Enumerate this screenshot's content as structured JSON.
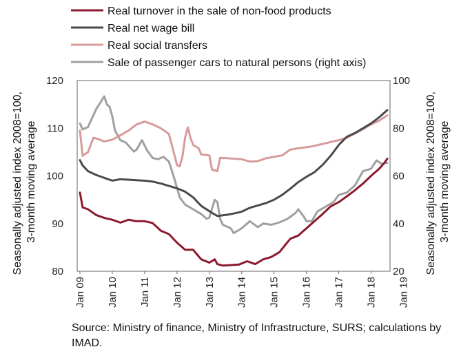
{
  "chart_data": {
    "type": "line",
    "x_start": "2009-01",
    "x_step": "month",
    "xtick_labels": [
      "Jan 09",
      "Jan 10",
      "Jan 11",
      "Jan 12",
      "Jan 13",
      "Jan 14",
      "Jan 15",
      "Jan 16",
      "Jan 17",
      "Jan 18",
      "Jan 19"
    ],
    "ylabel_left": "Seasonally adjusted index 2008=100, 3-month moving average",
    "ylabel_right": "Seasonally adjusted index 2008=100, 3-month moving average",
    "ylim_left": [
      80,
      120
    ],
    "ylim_right": [
      20,
      100
    ],
    "yticks_left": [
      "80",
      "90",
      "100",
      "110",
      "120"
    ],
    "yticks_right": [
      "20",
      "40",
      "60",
      "80",
      "100"
    ],
    "grid": false,
    "legend_position": "top",
    "series": [
      {
        "name": "Real turnover in the sale of non-food products",
        "axis": "left",
        "color": "#8b1a2e",
        "knots": [
          [
            0,
            96.5
          ],
          [
            1,
            93.4
          ],
          [
            3,
            93.0
          ],
          [
            6,
            91.8
          ],
          [
            9,
            91.2
          ],
          [
            12,
            90.8
          ],
          [
            15,
            90.2
          ],
          [
            18,
            90.8
          ],
          [
            21,
            90.5
          ],
          [
            24,
            90.5
          ],
          [
            27,
            90.1
          ],
          [
            30,
            88.5
          ],
          [
            33,
            87.8
          ],
          [
            36,
            86.0
          ],
          [
            39,
            84.5
          ],
          [
            42,
            84.5
          ],
          [
            45,
            82.5
          ],
          [
            48,
            81.8
          ],
          [
            50,
            82.5
          ],
          [
            51,
            81.5
          ],
          [
            53,
            81.2
          ],
          [
            56,
            81.3
          ],
          [
            59,
            81.4
          ],
          [
            62,
            82.1
          ],
          [
            65,
            81.5
          ],
          [
            68,
            82.5
          ],
          [
            71,
            83.0
          ],
          [
            74,
            84.0
          ],
          [
            78,
            86.8
          ],
          [
            81,
            87.5
          ],
          [
            84,
            89.0
          ],
          [
            87,
            90.5
          ],
          [
            90,
            92.0
          ],
          [
            93,
            93.6
          ],
          [
            96,
            94.5
          ],
          [
            99,
            95.7
          ],
          [
            102,
            97.0
          ],
          [
            105,
            98.4
          ],
          [
            108,
            100.0
          ],
          [
            111,
            101.5
          ],
          [
            113,
            102.8
          ],
          [
            114,
            103.6
          ]
        ]
      },
      {
        "name": "Real net wage bill",
        "axis": "left",
        "color": "#4a4a4a",
        "knots": [
          [
            0,
            103.3
          ],
          [
            1,
            102.2
          ],
          [
            3,
            101.0
          ],
          [
            6,
            100.2
          ],
          [
            9,
            99.6
          ],
          [
            12,
            99.0
          ],
          [
            15,
            99.3
          ],
          [
            18,
            99.2
          ],
          [
            24,
            99.0
          ],
          [
            27,
            98.8
          ],
          [
            30,
            98.4
          ],
          [
            33,
            97.9
          ],
          [
            36,
            97.4
          ],
          [
            39,
            96.7
          ],
          [
            42,
            95.5
          ],
          [
            45,
            93.7
          ],
          [
            48,
            92.6
          ],
          [
            51,
            91.6
          ],
          [
            54,
            91.8
          ],
          [
            57,
            92.1
          ],
          [
            60,
            92.5
          ],
          [
            63,
            93.3
          ],
          [
            66,
            93.8
          ],
          [
            69,
            94.3
          ],
          [
            72,
            95.0
          ],
          [
            75,
            96.0
          ],
          [
            78,
            97.3
          ],
          [
            81,
            98.7
          ],
          [
            84,
            99.8
          ],
          [
            87,
            100.8
          ],
          [
            90,
            102.3
          ],
          [
            93,
            104.2
          ],
          [
            96,
            106.5
          ],
          [
            99,
            108.2
          ],
          [
            102,
            109.0
          ],
          [
            105,
            110.0
          ],
          [
            108,
            111.0
          ],
          [
            111,
            112.3
          ],
          [
            114,
            113.8
          ]
        ]
      },
      {
        "name": "Real social transfers",
        "axis": "left",
        "color": "#d89a9a",
        "knots": [
          [
            0,
            109.5
          ],
          [
            1,
            104.2
          ],
          [
            3,
            105.0
          ],
          [
            5,
            108.0
          ],
          [
            7,
            107.7
          ],
          [
            9,
            107.2
          ],
          [
            12,
            107.6
          ],
          [
            15,
            108.5
          ],
          [
            18,
            109.5
          ],
          [
            21,
            110.8
          ],
          [
            24,
            111.4
          ],
          [
            27,
            110.8
          ],
          [
            30,
            110.0
          ],
          [
            33,
            108.8
          ],
          [
            35,
            104.5
          ],
          [
            36,
            102.3
          ],
          [
            37,
            102.0
          ],
          [
            38,
            104.0
          ],
          [
            39,
            108.0
          ],
          [
            40,
            110.2
          ],
          [
            41,
            108.0
          ],
          [
            42,
            106.5
          ],
          [
            44,
            105.8
          ],
          [
            45,
            104.5
          ],
          [
            48,
            104.3
          ],
          [
            49,
            101.3
          ],
          [
            51,
            101.0
          ],
          [
            52,
            103.8
          ],
          [
            55,
            103.7
          ],
          [
            60,
            103.5
          ],
          [
            63,
            103.0
          ],
          [
            66,
            103.1
          ],
          [
            69,
            103.7
          ],
          [
            72,
            104.0
          ],
          [
            75,
            104.3
          ],
          [
            78,
            105.5
          ],
          [
            81,
            105.8
          ],
          [
            84,
            106.0
          ],
          [
            87,
            106.3
          ],
          [
            90,
            106.7
          ],
          [
            93,
            107.1
          ],
          [
            96,
            107.5
          ],
          [
            99,
            108.0
          ],
          [
            102,
            108.9
          ],
          [
            105,
            109.8
          ],
          [
            108,
            110.8
          ],
          [
            111,
            111.6
          ],
          [
            114,
            112.7
          ]
        ]
      },
      {
        "name": "Sale of passenger cars to natural persons (right axis)",
        "axis": "right",
        "color": "#a0a0a0",
        "knots": [
          [
            0,
            82.0
          ],
          [
            1,
            79.5
          ],
          [
            3,
            80.5
          ],
          [
            6,
            88.0
          ],
          [
            8,
            91.5
          ],
          [
            9,
            93.4
          ],
          [
            10,
            90.0
          ],
          [
            11,
            89.0
          ],
          [
            12,
            85.0
          ],
          [
            13,
            79.0
          ],
          [
            15,
            75.0
          ],
          [
            17,
            74.0
          ],
          [
            19,
            71.5
          ],
          [
            20,
            70.2
          ],
          [
            21,
            71.0
          ],
          [
            23,
            75.0
          ],
          [
            25,
            70.5
          ],
          [
            27,
            67.5
          ],
          [
            29,
            67.0
          ],
          [
            31,
            68.0
          ],
          [
            33,
            66.0
          ],
          [
            35,
            59.0
          ],
          [
            37,
            51.0
          ],
          [
            39,
            48.0
          ],
          [
            42,
            46.0
          ],
          [
            45,
            44.0
          ],
          [
            47,
            42.0
          ],
          [
            48,
            42.5
          ],
          [
            50,
            50.0
          ],
          [
            51,
            49.0
          ],
          [
            52,
            42.0
          ],
          [
            53,
            39.5
          ],
          [
            56,
            38.0
          ],
          [
            57,
            36.0
          ],
          [
            60,
            38.0
          ],
          [
            63,
            41.0
          ],
          [
            66,
            38.5
          ],
          [
            68,
            40.0
          ],
          [
            71,
            39.5
          ],
          [
            74,
            40.5
          ],
          [
            77,
            42.0
          ],
          [
            80,
            44.5
          ],
          [
            81,
            46.0
          ],
          [
            83,
            43.0
          ],
          [
            84,
            41.0
          ],
          [
            86,
            41.0
          ],
          [
            88,
            45.0
          ],
          [
            91,
            47.0
          ],
          [
            94,
            49.0
          ],
          [
            96,
            52.0
          ],
          [
            99,
            53.0
          ],
          [
            102,
            56.0
          ],
          [
            105,
            62.0
          ],
          [
            108,
            63.0
          ],
          [
            110,
            66.5
          ],
          [
            112,
            65.0
          ],
          [
            114,
            65.5
          ]
        ]
      }
    ]
  },
  "source_note": "Source: Ministry of finance, Ministry of Infrastructure, SURS; calculations by IMAD."
}
